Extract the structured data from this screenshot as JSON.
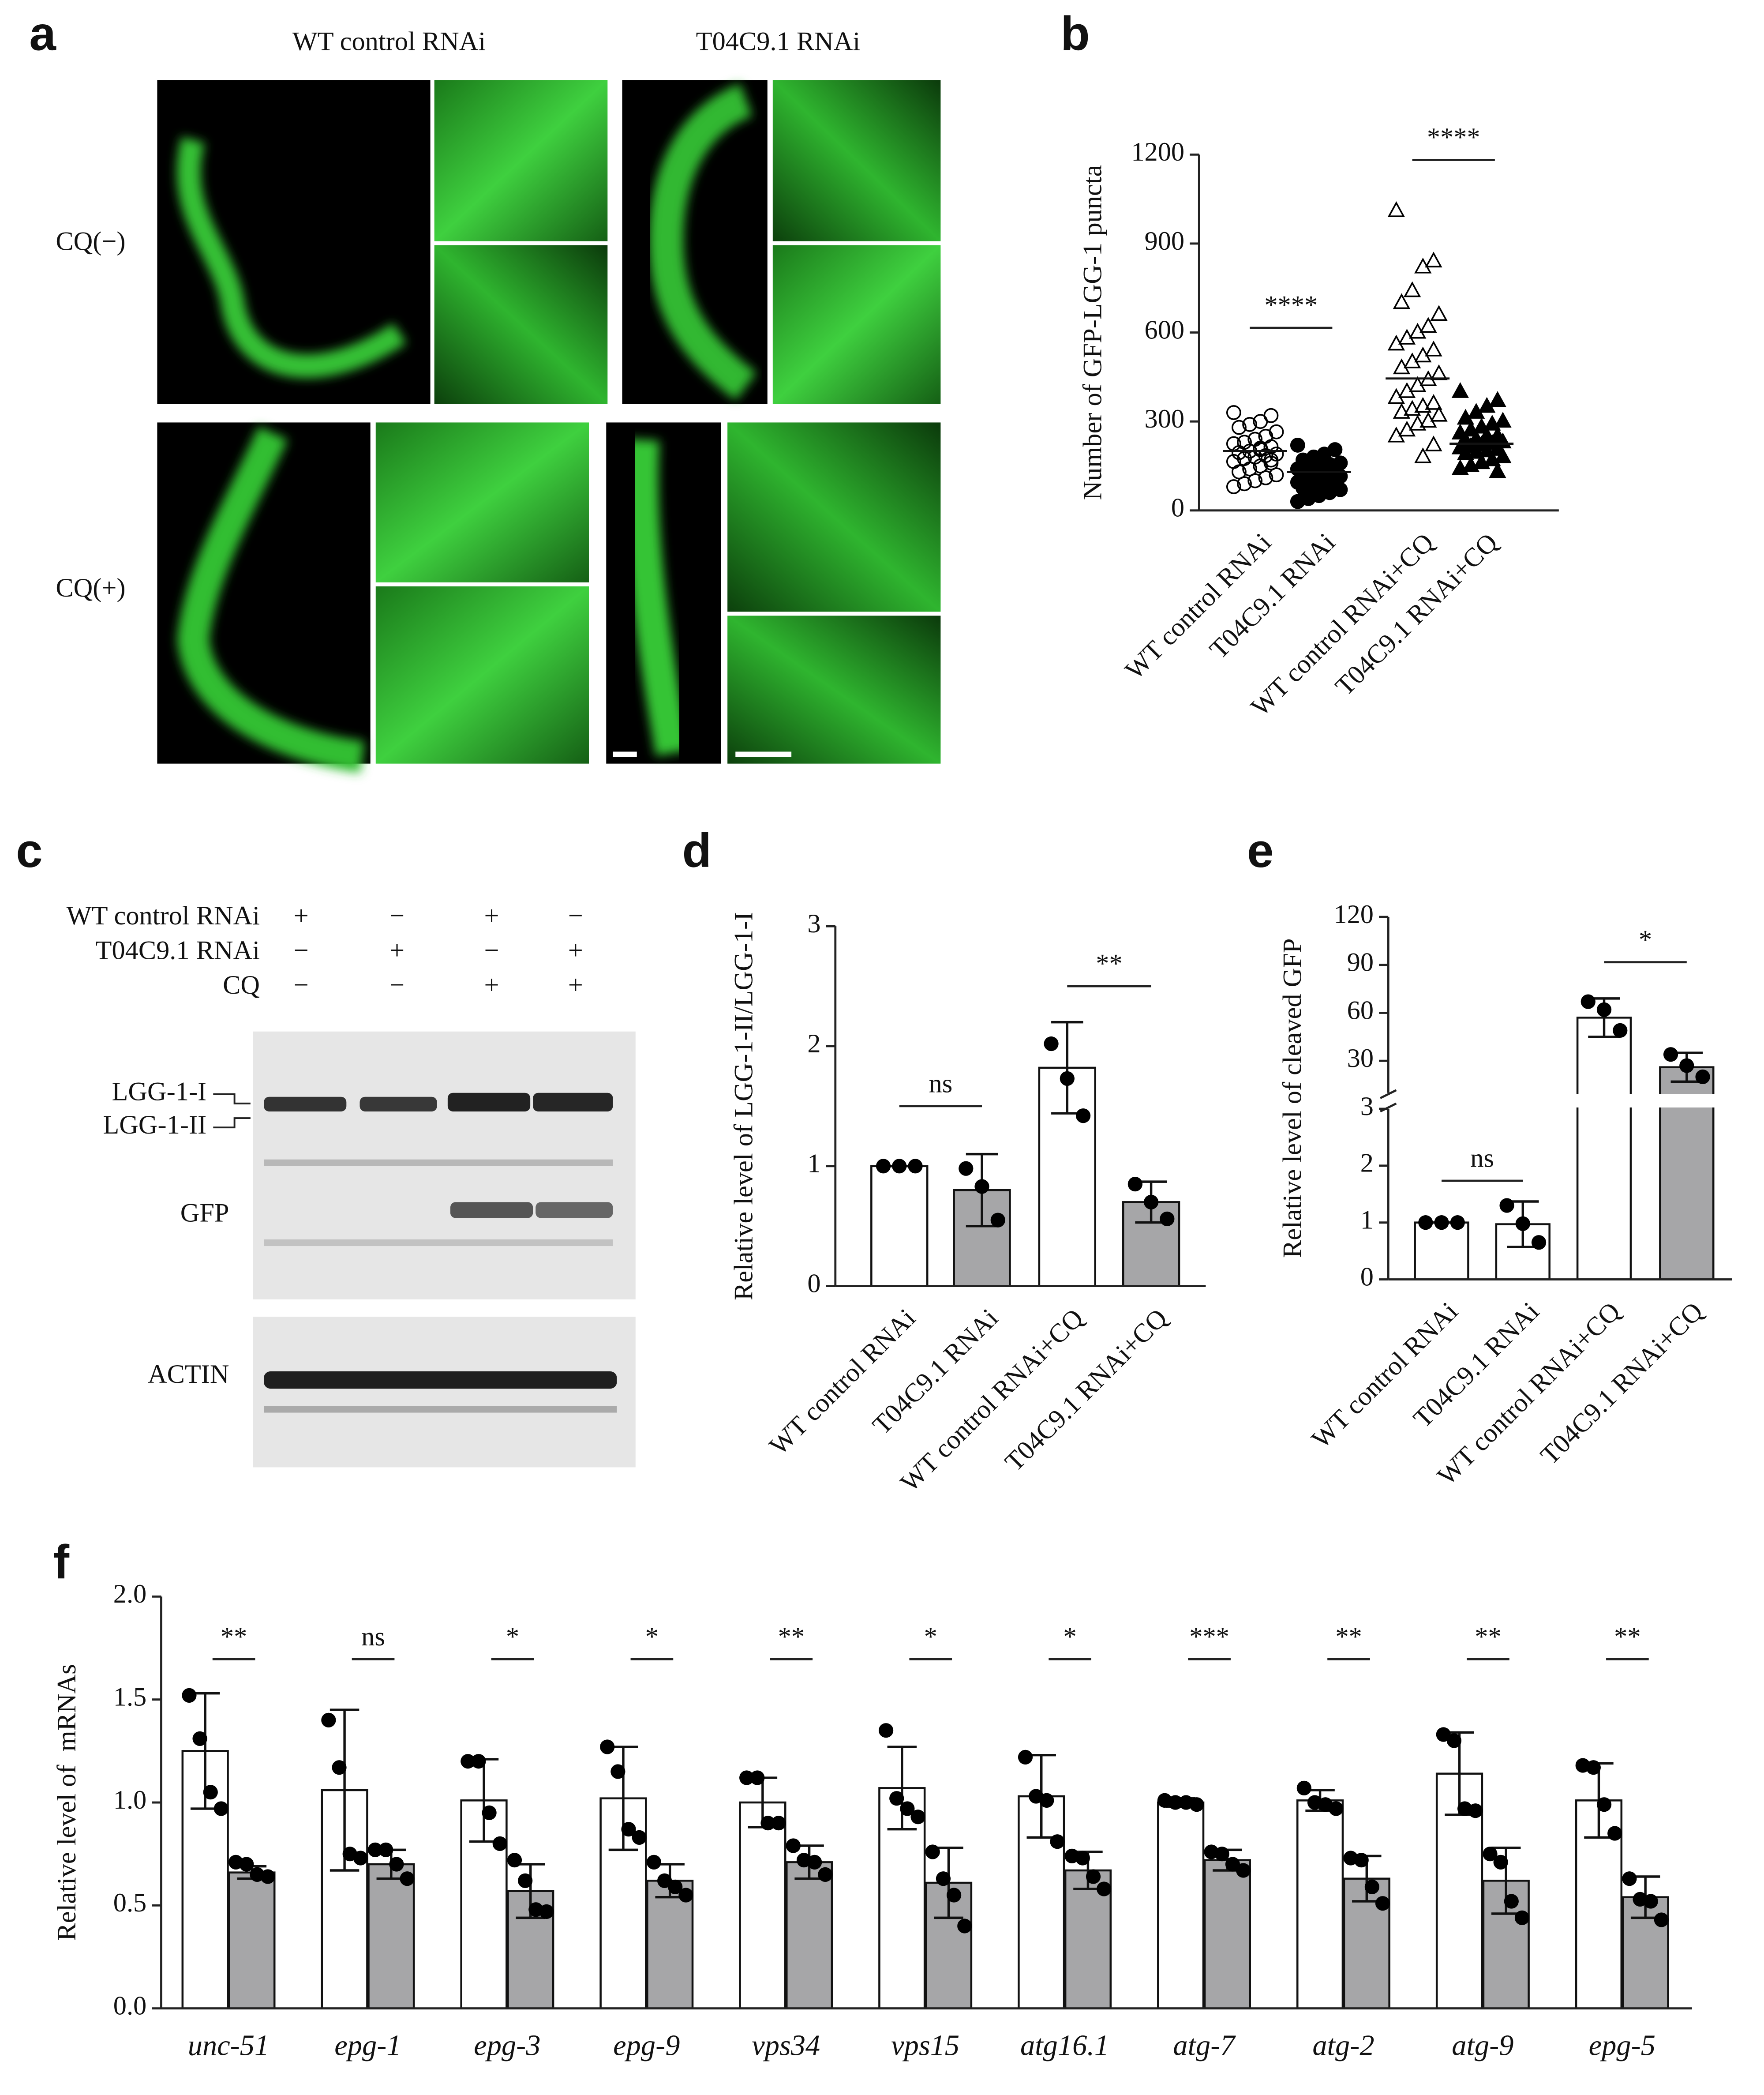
{
  "panel_labels": [
    "a",
    "b",
    "c",
    "d",
    "e",
    "f"
  ],
  "panel_a": {
    "column_labels": [
      "WT control RNAi",
      "T04C9.1 RNAi"
    ],
    "row_labels": [
      "CQ(−)",
      "CQ(+)"
    ]
  },
  "panel_c": {
    "conditions": [
      {
        "label": "WT control RNAi",
        "lanes": [
          "+",
          "−",
          "+",
          "−"
        ]
      },
      {
        "label": "T04C9.1 RNAi",
        "lanes": [
          "−",
          "+",
          "−",
          "+"
        ]
      },
      {
        "label": "CQ",
        "lanes": [
          "−",
          "−",
          "+",
          "+"
        ]
      }
    ],
    "band_labels": [
      "LGG-1-I",
      "LGG-1-II",
      "GFP",
      "ACTIN"
    ]
  },
  "chart_data": [
    {
      "type": "dotplot",
      "ylabel": "Number of GFP-LGG-1 puncta",
      "categories": [
        "WT control RNAi",
        "T04C9.1 RNAi",
        "WT control RNAi+CQ",
        "T04C9.1 RNAi+CQ"
      ],
      "groups": [
        {
          "marker": "circle",
          "filled": false,
          "mean": 200,
          "values": [
            330,
            320,
            300,
            290,
            280,
            265,
            250,
            240,
            230,
            225,
            215,
            210,
            200,
            195,
            190,
            185,
            180,
            175,
            165,
            160,
            150,
            140,
            130,
            120,
            110,
            100,
            90,
            80,
            170,
            205
          ]
        },
        {
          "marker": "circle",
          "filled": true,
          "mean": 130,
          "values": [
            220,
            205,
            190,
            180,
            170,
            160,
            155,
            150,
            145,
            140,
            135,
            130,
            125,
            120,
            115,
            110,
            105,
            100,
            95,
            90,
            85,
            80,
            75,
            70,
            60,
            50,
            40,
            30,
            130,
            115
          ]
        },
        {
          "marker": "triangle",
          "filled": false,
          "mean": 445,
          "values": [
            1010,
            840,
            820,
            740,
            700,
            660,
            620,
            600,
            580,
            560,
            540,
            520,
            500,
            480,
            460,
            440,
            420,
            400,
            380,
            360,
            350,
            340,
            330,
            320,
            300,
            290,
            270,
            250,
            220,
            180
          ]
        },
        {
          "marker": "triangle",
          "filled": true,
          "mean": 225,
          "values": [
            400,
            370,
            350,
            330,
            310,
            300,
            290,
            280,
            270,
            260,
            250,
            245,
            240,
            235,
            230,
            225,
            220,
            215,
            210,
            205,
            200,
            195,
            190,
            180,
            170,
            160,
            150,
            140,
            130,
            250
          ]
        }
      ],
      "ylim": [
        0,
        1200
      ],
      "yticks": [
        0,
        300,
        600,
        900,
        1200
      ],
      "annotations": [
        "****",
        "****"
      ]
    },
    {
      "type": "bar",
      "ylabel": "Relative level of LGG-1-II/LGG-1-I",
      "categories": [
        "WT control RNAi",
        "T04C9.1 RNAi",
        "WT control RNAi+CQ",
        "T04C9.1 RNAi+CQ"
      ],
      "colors": [
        "#ffffff",
        "#a6a6a8",
        "#ffffff",
        "#a6a6a8"
      ],
      "values": [
        1.0,
        0.8,
        1.82,
        0.7
      ],
      "errors": [
        0,
        0.3,
        0.38,
        0.17
      ],
      "points": [
        [
          1.0,
          1.0,
          1.0
        ],
        [
          0.98,
          0.83,
          0.55
        ],
        [
          2.02,
          1.73,
          1.42
        ],
        [
          0.85,
          0.7,
          0.56
        ]
      ],
      "ylim": [
        0,
        3
      ],
      "yticks": [
        0,
        1,
        2,
        3
      ],
      "annotations": [
        "ns",
        "**"
      ]
    },
    {
      "type": "broken_bar",
      "ylabel": "Relative level of cleaved GFP",
      "categories": [
        "WT control RNAi",
        "T04C9.1 RNAi",
        "WT control RNAi+CQ",
        "T04C9.1 RNAi+CQ"
      ],
      "colors": [
        "#ffffff",
        "#ffffff",
        "#ffffff",
        "#a6a6a8"
      ],
      "values": [
        1.0,
        0.97,
        57,
        26
      ],
      "errors": [
        0,
        0.4,
        12,
        9
      ],
      "points": [
        [
          1.0,
          1.0,
          1.0
        ],
        [
          1.3,
          0.98,
          0.65
        ],
        [
          67,
          62,
          49
        ],
        [
          34,
          27,
          20
        ]
      ],
      "lower_ylim": [
        0,
        3
      ],
      "lower_yticks": [
        0,
        1,
        2,
        3
      ],
      "upper_ylim": [
        10,
        120
      ],
      "upper_yticks": [
        30,
        60,
        90,
        120
      ],
      "annotations": [
        "ns",
        "*"
      ]
    },
    {
      "type": "grouped_bar",
      "ylabel": "Relative level of  mRNAs",
      "categories": [
        "unc-51",
        "epg-1",
        "epg-3",
        "epg-9",
        "vps34",
        "vps15",
        "atg16.1",
        "atg-7",
        "atg-2",
        "atg-9",
        "epg-5"
      ],
      "series": [
        {
          "color": "#ffffff",
          "values": [
            1.25,
            1.06,
            1.01,
            1.02,
            1.0,
            1.07,
            1.03,
            1.0,
            1.01,
            1.14,
            1.01
          ],
          "errors": [
            0.28,
            0.39,
            0.2,
            0.25,
            0.12,
            0.2,
            0.2,
            0.02,
            0.05,
            0.2,
            0.18
          ],
          "points": [
            [
              1.52,
              1.31,
              1.05,
              0.97
            ],
            [
              1.4,
              1.17,
              0.75,
              0.73
            ],
            [
              1.2,
              1.2,
              0.95,
              0.8
            ],
            [
              1.27,
              1.15,
              0.87,
              0.83
            ],
            [
              1.12,
              1.12,
              0.9,
              0.9
            ],
            [
              1.35,
              1.02,
              0.97,
              0.93
            ],
            [
              1.22,
              1.03,
              1.01,
              0.81
            ],
            [
              1.01,
              1.0,
              1.0,
              0.99
            ],
            [
              1.07,
              1.0,
              0.99,
              0.97
            ],
            [
              1.33,
              1.3,
              0.97,
              0.96
            ],
            [
              1.18,
              1.17,
              0.99,
              0.85
            ]
          ]
        },
        {
          "color": "#a6a6a8",
          "values": [
            0.66,
            0.7,
            0.57,
            0.62,
            0.71,
            0.61,
            0.67,
            0.72,
            0.63,
            0.62,
            0.54
          ],
          "errors": [
            0.03,
            0.07,
            0.13,
            0.08,
            0.08,
            0.17,
            0.09,
            0.05,
            0.11,
            0.16,
            0.1
          ],
          "points": [
            [
              0.71,
              0.7,
              0.65,
              0.64
            ],
            [
              0.77,
              0.77,
              0.7,
              0.63
            ],
            [
              0.72,
              0.62,
              0.48,
              0.47
            ],
            [
              0.71,
              0.62,
              0.59,
              0.55
            ],
            [
              0.79,
              0.72,
              0.71,
              0.65
            ],
            [
              0.76,
              0.63,
              0.55,
              0.4
            ],
            [
              0.74,
              0.73,
              0.64,
              0.58
            ],
            [
              0.76,
              0.75,
              0.7,
              0.67
            ],
            [
              0.73,
              0.72,
              0.59,
              0.51
            ],
            [
              0.75,
              0.71,
              0.52,
              0.44
            ],
            [
              0.63,
              0.53,
              0.52,
              0.43
            ]
          ]
        }
      ],
      "ylim": [
        0,
        2
      ],
      "yticks": [
        {
          "value": 0,
          "label": "0.0"
        },
        {
          "value": 0.5,
          "label": "0.5"
        },
        {
          "value": 1,
          "label": "1.0"
        },
        {
          "value": 1.5,
          "label": "1.5"
        },
        {
          "value": 2,
          "label": "2.0"
        }
      ],
      "annotations": [
        "**",
        "ns",
        "*",
        "*",
        "**",
        "*",
        "*",
        "***",
        "**",
        "**",
        "**"
      ]
    }
  ]
}
